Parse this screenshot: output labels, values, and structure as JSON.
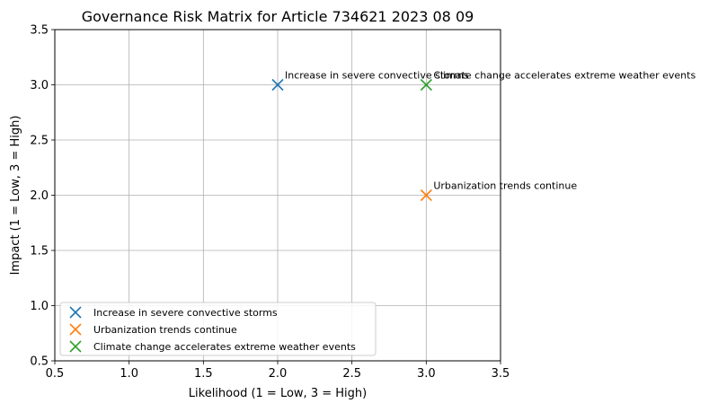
{
  "chart_data": {
    "type": "scatter",
    "title": "Governance Risk Matrix for Article 734621 2023 08 09",
    "xlabel": "Likelihood (1 = Low, 3 = High)",
    "ylabel": "Impact (1 = Low, 3 = High)",
    "xlim": [
      0.5,
      3.5
    ],
    "ylim": [
      0.5,
      3.5
    ],
    "xticks": [
      "0.5",
      "1.0",
      "1.5",
      "2.0",
      "2.5",
      "3.0",
      "3.5"
    ],
    "yticks": [
      "0.5",
      "1.0",
      "1.5",
      "2.0",
      "2.5",
      "3.0",
      "3.5"
    ],
    "xtick_values": [
      0.5,
      1.0,
      1.5,
      2.0,
      2.5,
      3.0,
      3.5
    ],
    "ytick_values": [
      0.5,
      1.0,
      1.5,
      2.0,
      2.5,
      3.0,
      3.5
    ],
    "grid": true,
    "legend_position": "lower-left",
    "marker": "x",
    "series": [
      {
        "name": "Increase in severe convective storms",
        "x": 2,
        "y": 3,
        "color": "#1f77b4"
      },
      {
        "name": "Urbanization trends continue",
        "x": 3,
        "y": 2,
        "color": "#ff7f0e"
      },
      {
        "name": "Climate change accelerates extreme weather events",
        "x": 3,
        "y": 3,
        "color": "#2ca02c"
      }
    ]
  }
}
